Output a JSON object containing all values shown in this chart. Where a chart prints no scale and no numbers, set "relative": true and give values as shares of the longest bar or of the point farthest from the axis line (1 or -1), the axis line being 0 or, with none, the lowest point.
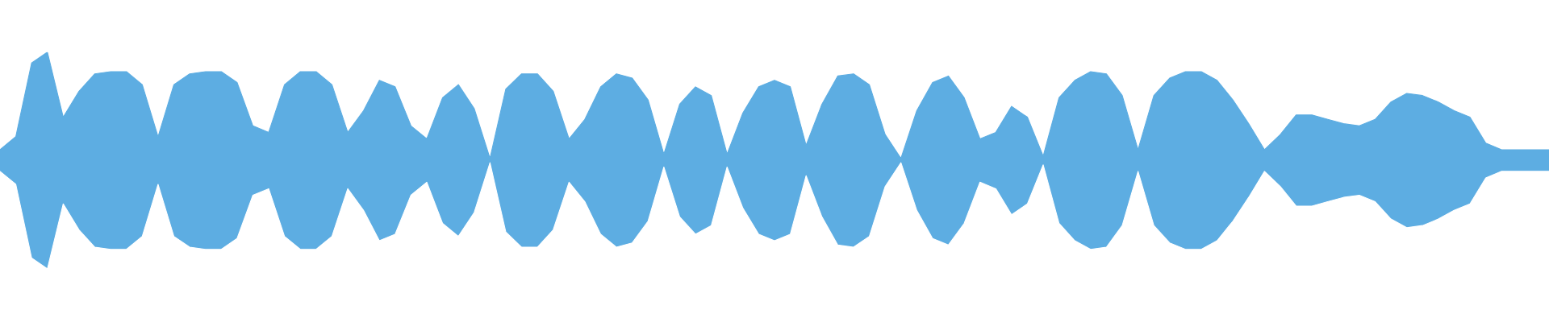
{
  "chart_data": {
    "type": "area",
    "relative": true,
    "categories": [
      null,
      null,
      null,
      null,
      null,
      null,
      null,
      null,
      null,
      null,
      null,
      null,
      null,
      null,
      null,
      null,
      null,
      null,
      null,
      null,
      null,
      null,
      null,
      null,
      null,
      null,
      null,
      null,
      null,
      null,
      null,
      null,
      null,
      null,
      null,
      null,
      null,
      null,
      null,
      null,
      null,
      null,
      null,
      null,
      null,
      null,
      null,
      null,
      null,
      null,
      null,
      null,
      null,
      null,
      null,
      null,
      null,
      null,
      null,
      null,
      null,
      null,
      null,
      null,
      null,
      null,
      null,
      null,
      null,
      null,
      null,
      null,
      null,
      null,
      null,
      null,
      null,
      null,
      null,
      null,
      null,
      null,
      null,
      null,
      null,
      null,
      null,
      null,
      null,
      null,
      null,
      null,
      null,
      null,
      null,
      null,
      null,
      null,
      null
    ],
    "series": [
      {
        "color": "#5dade2",
        "values": [
          0.55,
          0.61,
          0.95,
          1.0,
          0.7,
          0.82,
          0.9,
          0.91,
          0.91,
          0.85,
          0.61,
          0.85,
          0.9,
          0.91,
          0.91,
          0.86,
          0.66,
          0.63,
          0.85,
          0.91,
          0.91,
          0.85,
          0.63,
          0.73,
          0.87,
          0.84,
          0.66,
          0.6,
          0.79,
          0.85,
          0.74,
          0.51,
          0.83,
          0.9,
          0.9,
          0.82,
          0.6,
          0.69,
          0.84,
          0.9,
          0.88,
          0.78,
          0.53,
          0.76,
          0.84,
          0.8,
          0.53,
          0.72,
          0.84,
          0.87,
          0.84,
          0.57,
          0.76,
          0.89,
          0.9,
          0.85,
          0.62,
          0.51,
          0.73,
          0.86,
          0.89,
          0.79,
          0.6,
          0.63,
          0.75,
          0.7,
          0.52,
          0.79,
          0.87,
          0.91,
          0.9,
          0.8,
          0.55,
          0.8,
          0.88,
          0.91,
          0.91,
          0.87,
          0.78,
          0.67,
          0.55,
          0.62,
          0.71,
          0.71,
          0.69,
          0.67,
          0.66,
          0.69,
          0.77,
          0.81,
          0.8,
          0.77,
          0.73,
          0.7,
          0.58,
          0.55,
          0.55,
          0.55,
          0.55
        ]
      },
      {
        "color": "#ffffff",
        "values": [
          0.45,
          0.39,
          0.05,
          0.0,
          0.3,
          0.18,
          0.1,
          0.09,
          0.09,
          0.15,
          0.39,
          0.15,
          0.1,
          0.09,
          0.09,
          0.14,
          0.34,
          0.37,
          0.15,
          0.09,
          0.09,
          0.15,
          0.37,
          0.27,
          0.13,
          0.16,
          0.34,
          0.4,
          0.21,
          0.15,
          0.26,
          0.49,
          0.17,
          0.1,
          0.1,
          0.18,
          0.4,
          0.31,
          0.16,
          0.1,
          0.12,
          0.22,
          0.47,
          0.24,
          0.16,
          0.2,
          0.47,
          0.28,
          0.16,
          0.13,
          0.16,
          0.43,
          0.24,
          0.11,
          0.1,
          0.15,
          0.38,
          0.49,
          0.27,
          0.14,
          0.11,
          0.21,
          0.4,
          0.37,
          0.25,
          0.3,
          0.48,
          0.21,
          0.13,
          0.09,
          0.1,
          0.2,
          0.45,
          0.2,
          0.12,
          0.09,
          0.09,
          0.13,
          0.22,
          0.33,
          0.45,
          0.38,
          0.29,
          0.29,
          0.31,
          0.33,
          0.34,
          0.31,
          0.23,
          0.19,
          0.2,
          0.23,
          0.27,
          0.3,
          0.42,
          0.45,
          0.45,
          0.45,
          0.45
        ]
      }
    ]
  }
}
